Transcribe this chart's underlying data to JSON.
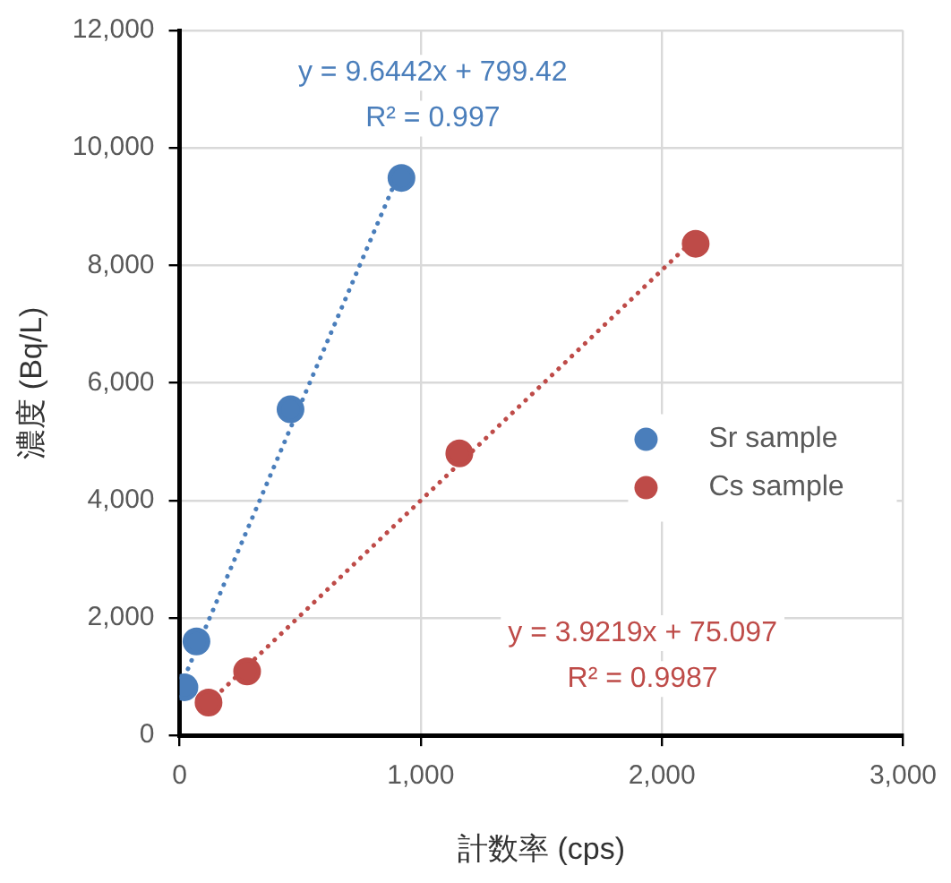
{
  "chart_data": {
    "type": "scatter",
    "xlabel": "計数率 (cps)",
    "ylabel": "濃度 (Bq/L)",
    "xlim": [
      0,
      3000
    ],
    "xticks": [
      0,
      {
        "value": 1000,
        "label": "1,000"
      },
      {
        "value": 2000,
        "label": "2,000"
      },
      {
        "value": 3000,
        "label": "3,000"
      }
    ],
    "ylim": [
      0,
      12000
    ],
    "yticks": [
      0,
      {
        "value": 2000,
        "label": "2,000"
      },
      {
        "value": 4000,
        "label": "4,000"
      },
      {
        "value": 6000,
        "label": "6,000"
      },
      {
        "value": 8000,
        "label": "8,000"
      },
      {
        "value": 10000,
        "label": "10,000"
      },
      {
        "value": 12000,
        "label": "12,000"
      }
    ],
    "grid": true,
    "legend": "right",
    "marker": "circle",
    "series": [
      {
        "name": "Sr sample",
        "color": "#4a7ebb",
        "x": [
          20,
          70,
          460,
          920
        ],
        "values": [
          820,
          1600,
          5550,
          9490
        ]
      },
      {
        "name": "Cs sample",
        "color": "#be4b48",
        "x": [
          120,
          280,
          1160,
          2140
        ],
        "values": [
          560,
          1090,
          4800,
          8370
        ]
      },
      {
        "type": "line",
        "color": "#4a7ebb",
        "line_style": "dotted",
        "marker": "none",
        "x": [
          20,
          920
        ],
        "values": [
          990,
          9670
        ]
      },
      {
        "type": "line",
        "color": "#be4b48",
        "line_style": "dotted",
        "marker": "none",
        "x": [
          120,
          2140
        ],
        "values": [
          550,
          8470
        ]
      }
    ],
    "annotations": [
      "y = 9.6442x + 799.42",
      "R² = 0.997",
      "y = 3.9219x + 75.097",
      "R² = 0.9987"
    ]
  }
}
